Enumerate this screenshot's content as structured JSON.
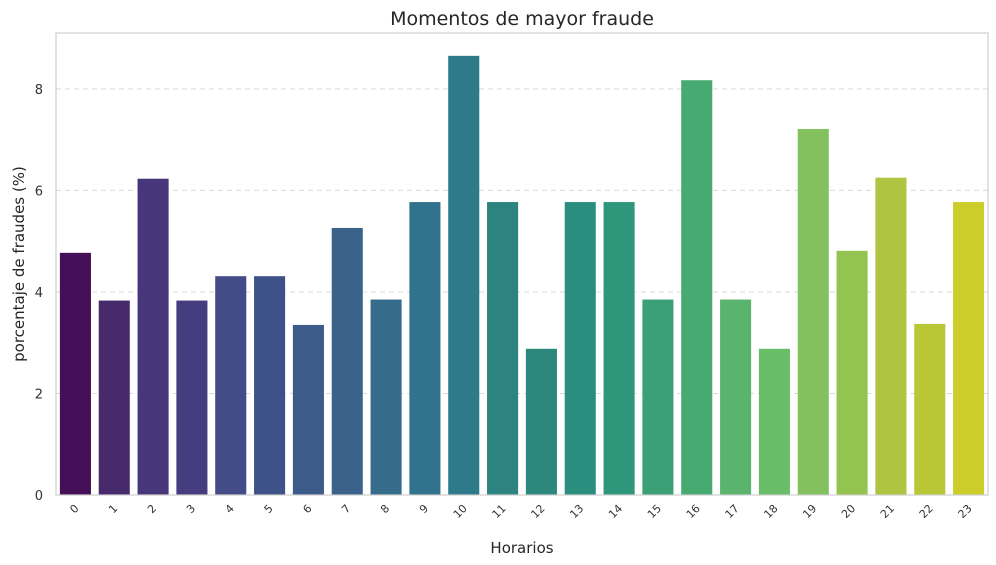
{
  "chart_data": {
    "type": "bar",
    "title": "Momentos de mayor fraude",
    "xlabel": "Horarios",
    "ylabel": "porcentaje de fraudes (%)",
    "categories": [
      "0",
      "1",
      "2",
      "3",
      "4",
      "5",
      "6",
      "7",
      "8",
      "9",
      "10",
      "11",
      "12",
      "13",
      "14",
      "15",
      "16",
      "17",
      "18",
      "19",
      "20",
      "21",
      "22",
      "23"
    ],
    "values": [
      4.77,
      3.83,
      6.23,
      3.83,
      4.31,
      4.31,
      3.35,
      5.26,
      3.85,
      5.77,
      8.65,
      5.77,
      2.88,
      5.77,
      5.77,
      3.85,
      8.17,
      3.85,
      2.88,
      7.21,
      4.81,
      6.25,
      3.37,
      5.77
    ],
    "ylim": [
      0,
      9.1
    ],
    "yticks": [
      "0",
      "2",
      "4",
      "6",
      "8"
    ],
    "grid": "y-dashed",
    "palette": "viridis",
    "colors": [
      "#440f56",
      "#472a6c",
      "#48367a",
      "#453d80",
      "#434c87",
      "#3e5188",
      "#3c5b89",
      "#3b6289",
      "#356c8b",
      "#31738c",
      "#2c7a8a",
      "#2d8380",
      "#2c877c",
      "#2a8d7e",
      "#2e967b",
      "#3ca077",
      "#47aa71",
      "#5ab46e",
      "#6abd68",
      "#82c15e",
      "#94c450",
      "#afc440",
      "#b9c737",
      "#cccc2b"
    ]
  }
}
